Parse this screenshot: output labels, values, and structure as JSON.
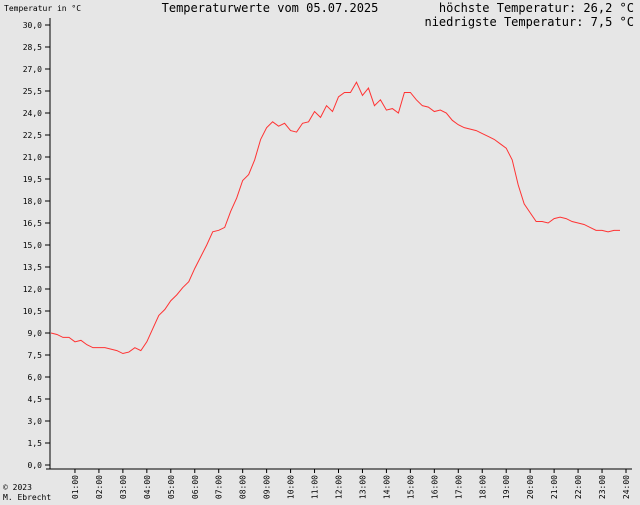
{
  "chart_data": {
    "type": "line",
    "title": "Temperaturwerte vom 05.07.2025",
    "y_label": "Temperatur in °C",
    "max_text": "höchste Temperatur: 26,2 °C",
    "min_text": "niedrigste Temperatur: 7,5 °C",
    "copyright": "© 2023",
    "author": "M. Ebrecht",
    "color": "#ff3333",
    "grid": false,
    "xlim": [
      0,
      24
    ],
    "ylim": [
      0,
      30
    ],
    "xticks": [
      {
        "value": 1,
        "label": "01:00"
      },
      {
        "value": 2,
        "label": "02:00"
      },
      {
        "value": 3,
        "label": "03:00"
      },
      {
        "value": 4,
        "label": "04:00"
      },
      {
        "value": 5,
        "label": "05:00"
      },
      {
        "value": 6,
        "label": "06:00"
      },
      {
        "value": 7,
        "label": "07:00"
      },
      {
        "value": 8,
        "label": "08:00"
      },
      {
        "value": 9,
        "label": "09:00"
      },
      {
        "value": 10,
        "label": "10:00"
      },
      {
        "value": 11,
        "label": "11:00"
      },
      {
        "value": 12,
        "label": "12:00"
      },
      {
        "value": 13,
        "label": "13:00"
      },
      {
        "value": 14,
        "label": "14:00"
      },
      {
        "value": 15,
        "label": "15:00"
      },
      {
        "value": 16,
        "label": "16:00"
      },
      {
        "value": 17,
        "label": "17:00"
      },
      {
        "value": 18,
        "label": "18:00"
      },
      {
        "value": 19,
        "label": "19:00"
      },
      {
        "value": 20,
        "label": "20:00"
      },
      {
        "value": 21,
        "label": "21:00"
      },
      {
        "value": 22,
        "label": "22:00"
      },
      {
        "value": 23,
        "label": "23:00"
      },
      {
        "value": 24,
        "label": "24:00"
      }
    ],
    "yticks": [
      {
        "value": 0,
        "label": "0,0"
      },
      {
        "value": 1.5,
        "label": "1,5"
      },
      {
        "value": 3,
        "label": "3,0"
      },
      {
        "value": 4.5,
        "label": "4,5"
      },
      {
        "value": 6,
        "label": "6,0"
      },
      {
        "value": 7.5,
        "label": "7,5"
      },
      {
        "value": 9,
        "label": "9,0"
      },
      {
        "value": 10.5,
        "label": "10,5"
      },
      {
        "value": 12,
        "label": "12,0"
      },
      {
        "value": 13.5,
        "label": "13,5"
      },
      {
        "value": 15,
        "label": "15,0"
      },
      {
        "value": 16.5,
        "label": "16,5"
      },
      {
        "value": 18,
        "label": "18,0"
      },
      {
        "value": 19.5,
        "label": "19,5"
      },
      {
        "value": 21,
        "label": "21,0"
      },
      {
        "value": 22.5,
        "label": "22,5"
      },
      {
        "value": 24,
        "label": "24,0"
      },
      {
        "value": 25.5,
        "label": "25,5"
      },
      {
        "value": 27,
        "label": "27,0"
      },
      {
        "value": 28.5,
        "label": "28,5"
      },
      {
        "value": 30,
        "label": "30,0"
      }
    ],
    "x": [
      0,
      0.25,
      0.5,
      0.75,
      1,
      1.25,
      1.5,
      1.75,
      2,
      2.25,
      2.5,
      2.75,
      3,
      3.25,
      3.5,
      3.75,
      4,
      4.25,
      4.5,
      4.75,
      5,
      5.25,
      5.5,
      5.75,
      6,
      6.25,
      6.5,
      6.75,
      7,
      7.25,
      7.5,
      7.75,
      8,
      8.25,
      8.5,
      8.75,
      9,
      9.25,
      9.5,
      9.75,
      10,
      10.25,
      10.5,
      10.75,
      11,
      11.25,
      11.5,
      11.75,
      12,
      12.25,
      12.5,
      12.75,
      13,
      13.25,
      13.5,
      13.75,
      14,
      14.25,
      14.5,
      14.75,
      15,
      15.25,
      15.5,
      15.75,
      16,
      16.25,
      16.5,
      16.75,
      17,
      17.25,
      17.5,
      17.75,
      18,
      18.25,
      18.5,
      18.75,
      19,
      19.25,
      19.5,
      19.75,
      20,
      20.25,
      20.5,
      20.75,
      21,
      21.25,
      21.5,
      21.75,
      22,
      22.25,
      22.5,
      22.75,
      23,
      23.25,
      23.5,
      23.75
    ],
    "values": [
      9.0,
      8.9,
      8.7,
      8.7,
      8.4,
      8.5,
      8.2,
      8.0,
      8.0,
      8.0,
      7.9,
      7.8,
      7.6,
      7.7,
      8.0,
      7.8,
      8.4,
      9.3,
      10.2,
      10.6,
      11.2,
      11.6,
      12.1,
      12.5,
      13.4,
      14.2,
      15.0,
      15.9,
      16.0,
      16.2,
      17.3,
      18.2,
      19.4,
      19.8,
      20.8,
      22.2,
      23.0,
      23.4,
      23.1,
      23.3,
      22.8,
      22.7,
      23.3,
      23.4,
      24.1,
      23.7,
      24.5,
      24.1,
      25.1,
      25.4,
      25.4,
      26.1,
      25.2,
      25.7,
      24.5,
      24.9,
      24.2,
      24.3,
      24.0,
      25.4,
      25.4,
      24.9,
      24.5,
      24.4,
      24.1,
      24.2,
      24.0,
      23.5,
      23.2,
      23.0,
      22.9,
      22.8,
      22.6,
      22.4,
      22.2,
      21.9,
      21.6,
      20.8,
      19.1,
      17.8,
      17.2,
      16.6,
      16.6,
      16.5,
      16.8,
      16.9,
      16.8,
      16.6,
      16.5,
      16.4,
      16.2,
      16.0,
      16.0,
      15.9,
      16.0,
      16.0
    ]
  }
}
